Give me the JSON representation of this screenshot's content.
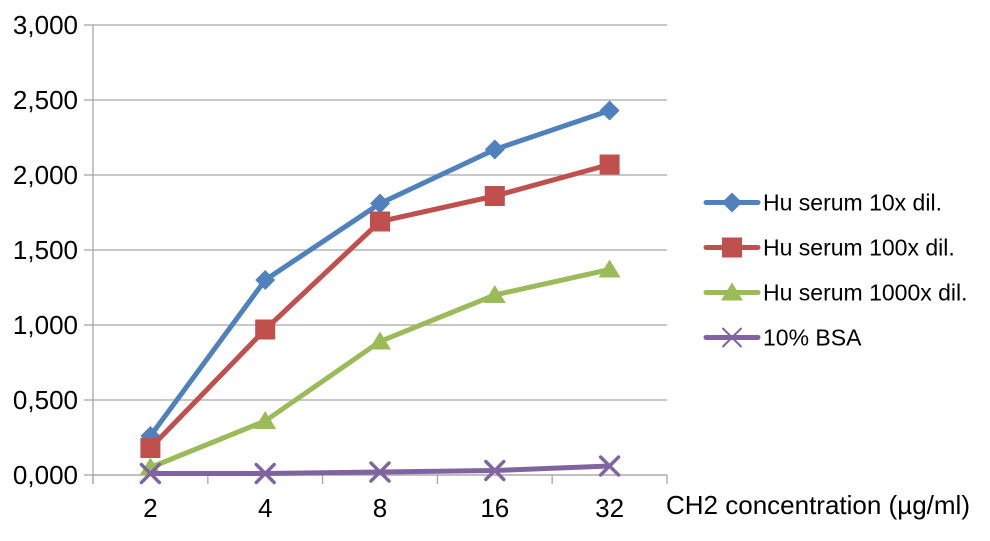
{
  "chart_data": {
    "type": "line",
    "title": "",
    "xlabel": "CH2 concentration (µg/ml)",
    "ylabel": "",
    "x_categories": [
      "2",
      "4",
      "8",
      "16",
      "32"
    ],
    "ylim": [
      0,
      3
    ],
    "y_ticks": {
      "values": [
        0,
        0.5,
        1,
        1.5,
        2,
        2.5,
        3
      ],
      "labels": [
        "0,000",
        "0,500",
        "1,000",
        "1,500",
        "2,000",
        "2,500",
        "3,000"
      ]
    },
    "grid": "horizontal",
    "legend_position": "right",
    "series": [
      {
        "name": "Hu serum 10x dil.",
        "marker": "diamond",
        "color": "#4F81BD",
        "values": [
          0.26,
          1.3,
          1.81,
          2.17,
          2.43
        ]
      },
      {
        "name": "Hu serum 100x dil.",
        "marker": "square",
        "color": "#C0504D",
        "values": [
          0.18,
          0.97,
          1.69,
          1.86,
          2.07
        ]
      },
      {
        "name": "Hu serum 1000x dil.",
        "marker": "triangle",
        "color": "#9BBB59",
        "values": [
          0.05,
          0.36,
          0.89,
          1.2,
          1.37
        ]
      },
      {
        "name": "10% BSA",
        "marker": "x",
        "color": "#8064A2",
        "values": [
          0.01,
          0.01,
          0.02,
          0.03,
          0.06
        ]
      }
    ],
    "colors": {
      "axis": "#A6A6A6",
      "gridline": "#A6A6A6",
      "text": "#000000",
      "background": "#FFFFFF"
    }
  }
}
